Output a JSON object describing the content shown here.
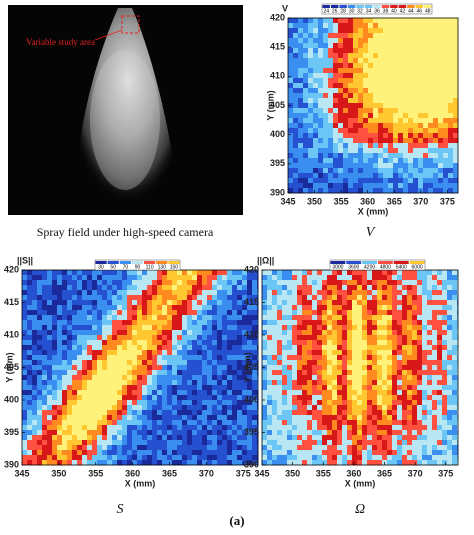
{
  "photo": {
    "annotation": "Variable study area",
    "caption": "Spray field under high-speed camera"
  },
  "panels": [
    {
      "corner_label": "V",
      "caption": "V",
      "colorbar": [
        24,
        26,
        28,
        30,
        32,
        34,
        36,
        38,
        40,
        42,
        44,
        46,
        48
      ],
      "xlabel": "X (mm)",
      "ylabel": "Y (mm)",
      "xlim": [
        345,
        377
      ],
      "ylim": [
        390,
        420
      ],
      "xticks": [
        345,
        350,
        355,
        360,
        365,
        370,
        375
      ],
      "yticks": [
        390,
        395,
        400,
        405,
        410,
        415,
        420
      ]
    },
    {
      "corner_label": "||S||",
      "caption": "S",
      "colorbar": [
        30,
        50,
        70,
        90,
        110,
        130,
        150
      ],
      "xlabel": "X (mm)",
      "ylabel": "Y (mm)",
      "xlim": [
        345,
        377
      ],
      "ylim": [
        390,
        420
      ],
      "xticks": [
        345,
        350,
        355,
        360,
        365,
        370,
        375
      ],
      "yticks": [
        390,
        395,
        400,
        405,
        410,
        415,
        420
      ]
    },
    {
      "corner_label": "||Ω||",
      "caption": "Ω",
      "colorbar": [
        3000,
        3600,
        4200,
        4800,
        5400,
        6000
      ],
      "xlabel": "X (mm)",
      "ylabel": "Y (mm)",
      "xlim": [
        345,
        377
      ],
      "ylim": [
        390,
        420
      ],
      "xticks": [
        345,
        350,
        355,
        360,
        365,
        370,
        375
      ],
      "yticks": [
        390,
        395,
        400,
        405,
        410,
        415,
        420
      ]
    }
  ],
  "figure_label": "(a)"
}
